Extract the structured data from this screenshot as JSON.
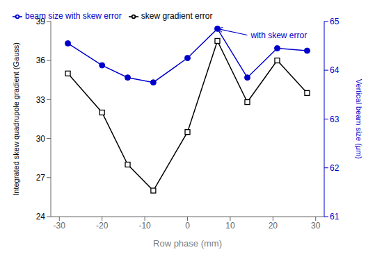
{
  "chart_data": {
    "type": "line",
    "x": [
      -28,
      -20,
      -14,
      -8,
      0,
      7,
      14,
      21,
      28
    ],
    "series": [
      {
        "name": "skew gradient error",
        "color": "#000000",
        "marker": "square",
        "values": [
          35.0,
          32.0,
          28.0,
          26.0,
          30.5,
          37.5,
          32.8,
          36.0,
          33.5
        ]
      },
      {
        "name": "beam size with skew error",
        "color": "#0000cc",
        "marker": "circle",
        "axis": "y2",
        "values": [
          64.55,
          64.1,
          63.85,
          63.75,
          64.25,
          64.85,
          63.85,
          64.45,
          64.4
        ]
      }
    ],
    "xlabel": "Row phase (mm)",
    "ylabel": "Integrated skew quadrupole gradient (Gauss)",
    "y2label": "Vertical beam size (μm)",
    "xlim": [
      -32,
      32
    ],
    "xticks": [
      -30,
      -20,
      -10,
      0,
      10,
      20,
      30
    ],
    "ylim": [
      24,
      39
    ],
    "yticks": [
      24,
      27,
      30,
      33,
      36,
      39
    ],
    "y2lim": [
      61,
      65
    ],
    "y2ticks": [
      61,
      62,
      63,
      64,
      65
    ],
    "legend": "upper left",
    "grid": false,
    "annotations": [
      {
        "text": "with skew error",
        "x": 14,
        "y": 64.72,
        "arrow_x": 7,
        "arrow_y": 64.85,
        "axis": "y2",
        "color": "#0000cc"
      }
    ]
  }
}
